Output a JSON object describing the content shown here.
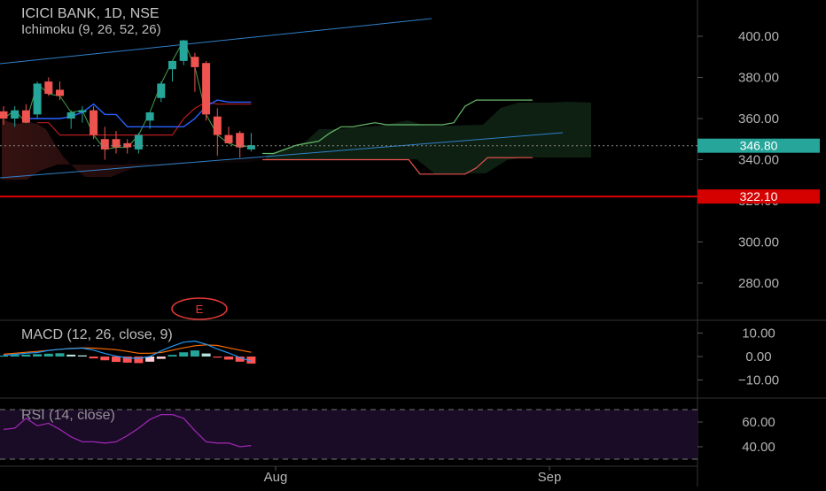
{
  "header": {
    "symbol_line": "ICICI BANK, 1D, NSE",
    "indicator_line": "Ichimoku (9, 26, 52, 26)"
  },
  "panes": {
    "macd_label": "MACD (12, 26, close, 9)",
    "rsi_label": "RSI (14, close)"
  },
  "event_marker": "E",
  "price_badges": {
    "last": "346.80",
    "level": "322.10"
  },
  "colors": {
    "up": "#26a69a",
    "down": "#ef5350",
    "level_line": "#e00000",
    "tenkan": "#2962ff",
    "kijun": "#b71c1c",
    "lagging": "#43a047",
    "span_a": "#66bb6a",
    "span_b": "#ef5350",
    "rsi": "#9c27b0",
    "macd_line": "#2196f3",
    "signal_line": "#ff6d00"
  },
  "chart_data": {
    "type": "candlestick",
    "price_axis": {
      "ticks": [
        280,
        300,
        320,
        340,
        360,
        380,
        400
      ],
      "tick_labels": [
        "280.00",
        "300.00",
        "320.00",
        "340.00",
        "360.00",
        "380.00",
        "400.00"
      ],
      "last_price": 346.8,
      "horizontal_level": 322.1
    },
    "time_axis": {
      "labels": [
        "Aug",
        "Sep"
      ]
    },
    "candles": [
      {
        "o": 363.5,
        "h": 366,
        "l": 357,
        "c": 360
      },
      {
        "o": 360,
        "h": 366,
        "l": 356,
        "c": 364
      },
      {
        "o": 364,
        "h": 367,
        "l": 358,
        "c": 358
      },
      {
        "o": 362,
        "h": 378,
        "l": 360,
        "c": 377
      },
      {
        "o": 378,
        "h": 380,
        "l": 371,
        "c": 372
      },
      {
        "o": 374,
        "h": 378,
        "l": 369,
        "c": 371
      },
      {
        "o": 360,
        "h": 364,
        "l": 355,
        "c": 363
      },
      {
        "o": 363,
        "h": 366,
        "l": 358,
        "c": 364
      },
      {
        "o": 364,
        "h": 366,
        "l": 350,
        "c": 352
      },
      {
        "o": 350,
        "h": 356,
        "l": 340,
        "c": 345
      },
      {
        "o": 350,
        "h": 354,
        "l": 343,
        "c": 346
      },
      {
        "o": 348,
        "h": 350,
        "l": 343,
        "c": 346
      },
      {
        "o": 345,
        "h": 353,
        "l": 343,
        "c": 352
      },
      {
        "o": 359,
        "h": 363,
        "l": 355,
        "c": 363
      },
      {
        "o": 370,
        "h": 378,
        "l": 368,
        "c": 377
      },
      {
        "o": 384,
        "h": 388,
        "l": 378,
        "c": 388
      },
      {
        "o": 388,
        "h": 398,
        "l": 386,
        "c": 398
      },
      {
        "o": 390,
        "h": 392,
        "l": 373,
        "c": 385
      },
      {
        "o": 387,
        "h": 388,
        "l": 359,
        "c": 362
      },
      {
        "o": 361,
        "h": 365,
        "l": 342,
        "c": 352
      },
      {
        "o": 352,
        "h": 356,
        "l": 348,
        "c": 348
      },
      {
        "o": 353,
        "h": 354,
        "l": 341,
        "c": 346
      },
      {
        "o": 345,
        "h": 353,
        "l": 344,
        "c": 347
      }
    ],
    "ichimoku": {
      "tenkan": [
        360,
        360,
        360,
        360,
        361,
        363,
        367,
        362,
        362,
        356,
        356,
        356,
        356,
        356,
        356,
        360,
        366,
        369,
        368,
        368,
        368
      ],
      "kijun": [
        358,
        358,
        352,
        352,
        352,
        352,
        352,
        352,
        352,
        352,
        352,
        352,
        352,
        360,
        365,
        368,
        367,
        367,
        367,
        367
      ],
      "span_a": [
        343,
        343,
        345,
        347,
        348,
        349,
        353,
        356,
        356,
        357,
        358,
        357,
        357,
        357,
        357,
        357,
        357,
        358,
        366,
        369,
        369,
        369,
        369,
        369,
        369
      ],
      "span_b": [
        340,
        340,
        340,
        340,
        340,
        340,
        340,
        340,
        340,
        340,
        340,
        340,
        340,
        340,
        333,
        333,
        333,
        333,
        333,
        336,
        341,
        341,
        341,
        341,
        341
      ]
    },
    "macd": {
      "ticks": [
        -10,
        0,
        10
      ],
      "tick_labels": [
        "−10.00",
        "0.00",
        "10.00"
      ],
      "histogram": [
        0.4,
        0.7,
        0.8,
        1.0,
        1.2,
        1.4,
        0.8,
        0.5,
        -0.8,
        -1.6,
        -2.3,
        -2.6,
        -2.8,
        -2.2,
        -1.0,
        0.7,
        1.8,
        2.6,
        1.3,
        -0.4,
        -1.3,
        -2.2,
        -3.0
      ],
      "macd": [
        0.5,
        0.9,
        1.4,
        1.7,
        2.6,
        3.1,
        3.4,
        3.6,
        2.7,
        1.3,
        0.2,
        -0.6,
        -0.8,
        0.0,
        2.4,
        4.4,
        6.1,
        6.6,
        5.2,
        3.2,
        1.5,
        -0.4,
        -2.0
      ],
      "signal": [
        1.0,
        1.4,
        1.8,
        2.2,
        2.6,
        3.1,
        3.5,
        3.7,
        3.6,
        3.3,
        2.9,
        2.2,
        1.4,
        1.4,
        1.7,
        2.7,
        3.7,
        4.6,
        5.0,
        4.7,
        3.7,
        2.7,
        1.8
      ]
    },
    "rsi": {
      "ticks": [
        40,
        60
      ],
      "tick_labels": [
        "40.00",
        "60.00"
      ],
      "values": [
        54,
        55,
        63,
        57,
        59,
        54,
        48,
        44,
        44,
        43,
        44,
        49,
        55,
        62,
        66,
        66,
        63,
        53,
        44,
        43,
        43,
        40,
        41
      ]
    }
  }
}
